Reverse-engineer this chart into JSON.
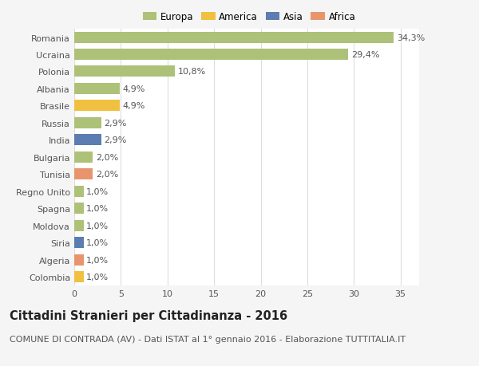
{
  "countries": [
    "Romania",
    "Ucraina",
    "Polonia",
    "Albania",
    "Brasile",
    "Russia",
    "India",
    "Bulgaria",
    "Tunisia",
    "Regno Unito",
    "Spagna",
    "Moldova",
    "Siria",
    "Algeria",
    "Colombia"
  ],
  "values": [
    34.3,
    29.4,
    10.8,
    4.9,
    4.9,
    2.9,
    2.9,
    2.0,
    2.0,
    1.0,
    1.0,
    1.0,
    1.0,
    1.0,
    1.0
  ],
  "labels": [
    "34,3%",
    "29,4%",
    "10,8%",
    "4,9%",
    "4,9%",
    "2,9%",
    "2,9%",
    "2,0%",
    "2,0%",
    "1,0%",
    "1,0%",
    "1,0%",
    "1,0%",
    "1,0%",
    "1,0%"
  ],
  "continents": [
    "Europa",
    "Europa",
    "Europa",
    "Europa",
    "America",
    "Europa",
    "Asia",
    "Europa",
    "Africa",
    "Europa",
    "Europa",
    "Europa",
    "Asia",
    "Africa",
    "America"
  ],
  "continent_colors": {
    "Europa": "#adc178",
    "America": "#f0c040",
    "Asia": "#5b7db1",
    "Africa": "#e8956d"
  },
  "legend_order": [
    "Europa",
    "America",
    "Asia",
    "Africa"
  ],
  "title": "Cittadini Stranieri per Cittadinanza - 2016",
  "subtitle": "COMUNE DI CONTRADA (AV) - Dati ISTAT al 1° gennaio 2016 - Elaborazione TUTTITALIA.IT",
  "xlim": [
    0,
    37
  ],
  "xticks": [
    0,
    5,
    10,
    15,
    20,
    25,
    30,
    35
  ],
  "bg_color": "#f5f5f5",
  "plot_bg_color": "#ffffff",
  "grid_color": "#dddddd",
  "bar_height": 0.65,
  "label_fontsize": 8,
  "tick_fontsize": 8,
  "title_fontsize": 10.5,
  "subtitle_fontsize": 8,
  "legend_fontsize": 8.5
}
